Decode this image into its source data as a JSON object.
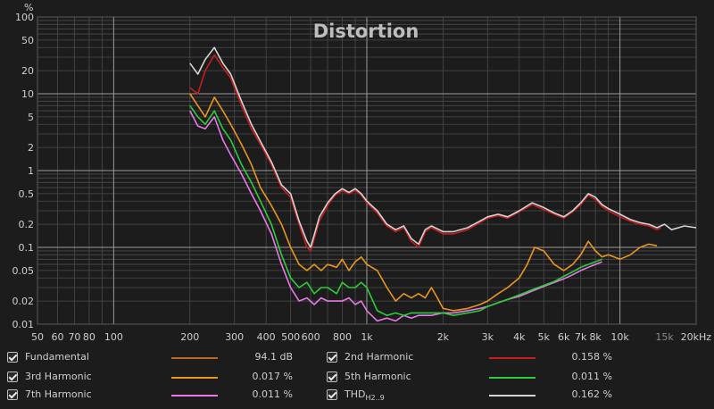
{
  "chart_data": {
    "type": "line",
    "title": "Distortion",
    "ylabel": "%",
    "yscale": "log",
    "xscale": "log",
    "xlim": [
      50,
      20000
    ],
    "ylim": [
      0.01,
      100
    ],
    "grid": true,
    "x_ticks": [
      {
        "v": 50,
        "label": "50"
      },
      {
        "v": 60,
        "label": "60"
      },
      {
        "v": 70,
        "label": "70"
      },
      {
        "v": 80,
        "label": "80"
      },
      {
        "v": 100,
        "label": "100"
      },
      {
        "v": 200,
        "label": "200"
      },
      {
        "v": 300,
        "label": "300"
      },
      {
        "v": 400,
        "label": "400"
      },
      {
        "v": 500,
        "label": "500"
      },
      {
        "v": 600,
        "label": "600"
      },
      {
        "v": 800,
        "label": "800"
      },
      {
        "v": 1000,
        "label": "1k"
      },
      {
        "v": 2000,
        "label": "2k"
      },
      {
        "v": 3000,
        "label": "3k"
      },
      {
        "v": 4000,
        "label": "4k"
      },
      {
        "v": 5000,
        "label": "5k"
      },
      {
        "v": 6000,
        "label": "6k"
      },
      {
        "v": 7000,
        "label": "7k"
      },
      {
        "v": 8000,
        "label": "8k"
      },
      {
        "v": 10000,
        "label": "10k"
      },
      {
        "v": 15000,
        "label": "15k"
      },
      {
        "v": 20000,
        "label": "20kHz"
      }
    ],
    "y_ticks": [
      {
        "v": 100,
        "label": "100"
      },
      {
        "v": 50,
        "label": "50"
      },
      {
        "v": 20,
        "label": "20"
      },
      {
        "v": 10,
        "label": "10"
      },
      {
        "v": 5,
        "label": "5"
      },
      {
        "v": 2,
        "label": "2"
      },
      {
        "v": 1,
        "label": "1"
      },
      {
        "v": 0.5,
        "label": "0.5"
      },
      {
        "v": 0.2,
        "label": "0.2"
      },
      {
        "v": 0.1,
        "label": "0.1"
      },
      {
        "v": 0.05,
        "label": "0.05"
      },
      {
        "v": 0.02,
        "label": "0.02"
      },
      {
        "v": 0.01,
        "label": "0.01"
      }
    ],
    "series": [
      {
        "name": "THD",
        "color": "#d4d4d4",
        "points": [
          [
            200,
            25
          ],
          [
            215,
            18
          ],
          [
            230,
            28
          ],
          [
            250,
            40
          ],
          [
            270,
            25
          ],
          [
            290,
            18
          ],
          [
            320,
            8
          ],
          [
            350,
            4
          ],
          [
            380,
            2.4
          ],
          [
            420,
            1.3
          ],
          [
            460,
            0.65
          ],
          [
            500,
            0.5
          ],
          [
            540,
            0.22
          ],
          [
            580,
            0.12
          ],
          [
            600,
            0.1
          ],
          [
            650,
            0.25
          ],
          [
            700,
            0.38
          ],
          [
            750,
            0.5
          ],
          [
            800,
            0.58
          ],
          [
            850,
            0.52
          ],
          [
            900,
            0.58
          ],
          [
            950,
            0.5
          ],
          [
            1000,
            0.4
          ],
          [
            1100,
            0.3
          ],
          [
            1200,
            0.2
          ],
          [
            1300,
            0.17
          ],
          [
            1400,
            0.19
          ],
          [
            1500,
            0.13
          ],
          [
            1600,
            0.11
          ],
          [
            1700,
            0.17
          ],
          [
            1800,
            0.19
          ],
          [
            2000,
            0.16
          ],
          [
            2200,
            0.16
          ],
          [
            2500,
            0.18
          ],
          [
            2800,
            0.22
          ],
          [
            3000,
            0.25
          ],
          [
            3300,
            0.27
          ],
          [
            3600,
            0.25
          ],
          [
            4000,
            0.3
          ],
          [
            4500,
            0.38
          ],
          [
            5000,
            0.33
          ],
          [
            5500,
            0.28
          ],
          [
            6000,
            0.25
          ],
          [
            6500,
            0.3
          ],
          [
            7000,
            0.38
          ],
          [
            7500,
            0.5
          ],
          [
            8000,
            0.45
          ],
          [
            8500,
            0.36
          ],
          [
            9000,
            0.32
          ],
          [
            10000,
            0.27
          ],
          [
            11000,
            0.23
          ],
          [
            12000,
            0.21
          ],
          [
            13000,
            0.2
          ],
          [
            14000,
            0.18
          ],
          [
            15000,
            0.2
          ],
          [
            16000,
            0.17
          ],
          [
            18000,
            0.19
          ],
          [
            20000,
            0.18
          ]
        ]
      },
      {
        "name": "2nd Harmonic",
        "color": "#c41e1e",
        "points": [
          [
            200,
            12
          ],
          [
            215,
            10
          ],
          [
            230,
            20
          ],
          [
            250,
            32
          ],
          [
            270,
            22
          ],
          [
            290,
            16
          ],
          [
            320,
            7
          ],
          [
            350,
            3.5
          ],
          [
            380,
            2.2
          ],
          [
            420,
            1.2
          ],
          [
            460,
            0.6
          ],
          [
            500,
            0.45
          ],
          [
            540,
            0.2
          ],
          [
            580,
            0.1
          ],
          [
            600,
            0.09
          ],
          [
            650,
            0.22
          ],
          [
            700,
            0.35
          ],
          [
            750,
            0.48
          ],
          [
            800,
            0.55
          ],
          [
            850,
            0.5
          ],
          [
            900,
            0.55
          ],
          [
            950,
            0.48
          ],
          [
            1000,
            0.38
          ],
          [
            1100,
            0.28
          ],
          [
            1200,
            0.19
          ],
          [
            1300,
            0.16
          ],
          [
            1400,
            0.18
          ],
          [
            1500,
            0.12
          ],
          [
            1600,
            0.1
          ],
          [
            1700,
            0.16
          ],
          [
            1800,
            0.18
          ],
          [
            2000,
            0.15
          ],
          [
            2200,
            0.15
          ],
          [
            2500,
            0.17
          ],
          [
            2800,
            0.21
          ],
          [
            3000,
            0.24
          ],
          [
            3300,
            0.26
          ],
          [
            3600,
            0.24
          ],
          [
            4000,
            0.29
          ],
          [
            4500,
            0.36
          ],
          [
            5000,
            0.31
          ],
          [
            5500,
            0.27
          ],
          [
            6000,
            0.24
          ],
          [
            6500,
            0.29
          ],
          [
            7000,
            0.36
          ],
          [
            7500,
            0.48
          ],
          [
            8000,
            0.42
          ],
          [
            8500,
            0.34
          ],
          [
            9000,
            0.3
          ],
          [
            10000,
            0.25
          ],
          [
            11000,
            0.22
          ],
          [
            12000,
            0.2
          ],
          [
            13000,
            0.19
          ],
          [
            14000,
            0.17
          ],
          [
            14500,
            0.18
          ]
        ]
      },
      {
        "name": "3rd Harmonic",
        "color": "#e8961e",
        "points": [
          [
            200,
            10
          ],
          [
            215,
            7
          ],
          [
            230,
            5
          ],
          [
            250,
            9
          ],
          [
            270,
            6
          ],
          [
            290,
            4
          ],
          [
            320,
            2.2
          ],
          [
            350,
            1.2
          ],
          [
            380,
            0.6
          ],
          [
            420,
            0.35
          ],
          [
            460,
            0.2
          ],
          [
            500,
            0.1
          ],
          [
            540,
            0.06
          ],
          [
            580,
            0.05
          ],
          [
            620,
            0.06
          ],
          [
            660,
            0.05
          ],
          [
            700,
            0.06
          ],
          [
            760,
            0.055
          ],
          [
            800,
            0.07
          ],
          [
            850,
            0.05
          ],
          [
            900,
            0.065
          ],
          [
            950,
            0.075
          ],
          [
            1000,
            0.06
          ],
          [
            1100,
            0.05
          ],
          [
            1200,
            0.03
          ],
          [
            1300,
            0.02
          ],
          [
            1400,
            0.025
          ],
          [
            1500,
            0.022
          ],
          [
            1600,
            0.025
          ],
          [
            1700,
            0.022
          ],
          [
            1800,
            0.03
          ],
          [
            1900,
            0.022
          ],
          [
            2000,
            0.016
          ],
          [
            2200,
            0.015
          ],
          [
            2500,
            0.016
          ],
          [
            2800,
            0.018
          ],
          [
            3000,
            0.02
          ],
          [
            3300,
            0.025
          ],
          [
            3600,
            0.03
          ],
          [
            4000,
            0.04
          ],
          [
            4300,
            0.06
          ],
          [
            4600,
            0.1
          ],
          [
            5000,
            0.09
          ],
          [
            5500,
            0.06
          ],
          [
            6000,
            0.05
          ],
          [
            6500,
            0.06
          ],
          [
            7000,
            0.08
          ],
          [
            7500,
            0.12
          ],
          [
            8000,
            0.09
          ],
          [
            8500,
            0.075
          ],
          [
            9000,
            0.08
          ],
          [
            10000,
            0.07
          ],
          [
            11000,
            0.08
          ],
          [
            12000,
            0.1
          ],
          [
            13000,
            0.11
          ],
          [
            14000,
            0.105
          ]
        ]
      },
      {
        "name": "5th Harmonic",
        "color": "#2ecc3a",
        "points": [
          [
            200,
            7
          ],
          [
            215,
            5
          ],
          [
            230,
            4
          ],
          [
            250,
            6
          ],
          [
            270,
            3.5
          ],
          [
            290,
            2.5
          ],
          [
            320,
            1.2
          ],
          [
            350,
            0.7
          ],
          [
            380,
            0.4
          ],
          [
            420,
            0.2
          ],
          [
            460,
            0.08
          ],
          [
            500,
            0.04
          ],
          [
            540,
            0.03
          ],
          [
            580,
            0.035
          ],
          [
            620,
            0.025
          ],
          [
            660,
            0.03
          ],
          [
            700,
            0.03
          ],
          [
            760,
            0.025
          ],
          [
            800,
            0.035
          ],
          [
            850,
            0.03
          ],
          [
            900,
            0.03
          ],
          [
            950,
            0.035
          ],
          [
            1000,
            0.03
          ],
          [
            1100,
            0.015
          ],
          [
            1200,
            0.013
          ],
          [
            1300,
            0.014
          ],
          [
            1400,
            0.013
          ],
          [
            1500,
            0.014
          ],
          [
            1600,
            0.014
          ],
          [
            1800,
            0.014
          ],
          [
            2000,
            0.014
          ],
          [
            2200,
            0.013
          ],
          [
            2500,
            0.014
          ],
          [
            2800,
            0.015
          ],
          [
            3000,
            0.017
          ],
          [
            3300,
            0.019
          ],
          [
            3600,
            0.021
          ],
          [
            4000,
            0.024
          ],
          [
            4500,
            0.028
          ],
          [
            5000,
            0.032
          ],
          [
            5500,
            0.036
          ],
          [
            6000,
            0.042
          ],
          [
            6500,
            0.048
          ],
          [
            7000,
            0.055
          ],
          [
            7500,
            0.06
          ],
          [
            8000,
            0.065
          ],
          [
            8500,
            0.07
          ]
        ]
      },
      {
        "name": "7th Harmonic",
        "color": "#e879e8",
        "points": [
          [
            200,
            6
          ],
          [
            215,
            3.8
          ],
          [
            230,
            3.5
          ],
          [
            250,
            5
          ],
          [
            270,
            2.5
          ],
          [
            290,
            1.6
          ],
          [
            320,
            0.9
          ],
          [
            350,
            0.5
          ],
          [
            380,
            0.3
          ],
          [
            420,
            0.15
          ],
          [
            460,
            0.06
          ],
          [
            500,
            0.03
          ],
          [
            540,
            0.02
          ],
          [
            580,
            0.022
          ],
          [
            620,
            0.018
          ],
          [
            660,
            0.022
          ],
          [
            700,
            0.02
          ],
          [
            760,
            0.02
          ],
          [
            800,
            0.02
          ],
          [
            850,
            0.022
          ],
          [
            900,
            0.018
          ],
          [
            950,
            0.02
          ],
          [
            1000,
            0.015
          ],
          [
            1100,
            0.011
          ],
          [
            1200,
            0.012
          ],
          [
            1300,
            0.011
          ],
          [
            1400,
            0.013
          ],
          [
            1500,
            0.012
          ],
          [
            1600,
            0.013
          ],
          [
            1800,
            0.013
          ],
          [
            2000,
            0.014
          ],
          [
            2200,
            0.014
          ],
          [
            2500,
            0.015
          ],
          [
            2800,
            0.016
          ],
          [
            3000,
            0.017
          ],
          [
            3300,
            0.019
          ],
          [
            3600,
            0.021
          ],
          [
            4000,
            0.023
          ],
          [
            4500,
            0.027
          ],
          [
            5000,
            0.031
          ],
          [
            5500,
            0.035
          ],
          [
            6000,
            0.039
          ],
          [
            6500,
            0.044
          ],
          [
            7000,
            0.05
          ],
          [
            7500,
            0.055
          ],
          [
            8000,
            0.06
          ],
          [
            8500,
            0.065
          ]
        ]
      }
    ]
  },
  "legend": {
    "rows": [
      [
        {
          "label": "Fundamental",
          "color": "#b8692a",
          "value": "94.1 dB"
        },
        {
          "label": "2nd Harmonic",
          "color": "#c41e1e",
          "value": "0.158 %"
        }
      ],
      [
        {
          "label": "3rd Harmonic",
          "color": "#e8961e",
          "value": "0.017 %"
        },
        {
          "label": "5th Harmonic",
          "color": "#2ecc3a",
          "value": "0.011 %"
        }
      ],
      [
        {
          "label": "7th Harmonic",
          "color": "#e879e8",
          "value": "0.011 %"
        },
        {
          "label": "THD",
          "sub": "H2..9",
          "color": "#d4d4d4",
          "value": "0.162 %"
        }
      ]
    ]
  }
}
